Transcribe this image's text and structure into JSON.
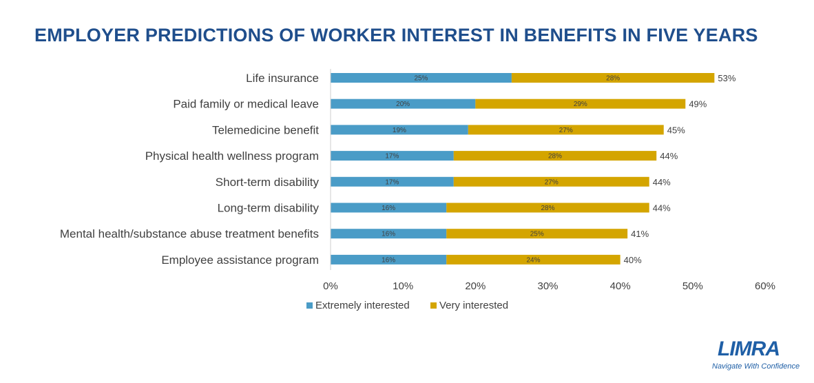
{
  "title": "EMPLOYER PREDICTIONS OF WORKER INTEREST IN BENEFITS IN FIVE YEARS",
  "logo": {
    "name": "LIMRA",
    "tagline": "Navigate With Confidence"
  },
  "colors": {
    "title": "#1f4e8c",
    "extremely": "#4a9cc7",
    "very": "#d4a500",
    "axis": "#cccccc",
    "text": "#404040"
  },
  "chart_data": {
    "type": "bar",
    "orientation": "horizontal",
    "stacked": true,
    "categories": [
      "Life insurance",
      "Paid family or medical leave",
      "Telemedicine benefit",
      "Physical health wellness program",
      "Short-term disability",
      "Long-term disability",
      "Mental health/substance abuse treatment benefits",
      "Employee assistance program"
    ],
    "series": [
      {
        "name": "Extremely interested",
        "values": [
          25,
          20,
          19,
          17,
          17,
          16,
          16,
          16
        ],
        "labels": [
          "25%",
          "20%",
          "19%",
          "17%",
          "17%",
          "16%",
          "16%",
          "16%"
        ]
      },
      {
        "name": "Very interested",
        "values": [
          28,
          29,
          27,
          28,
          27,
          28,
          25,
          24
        ],
        "labels": [
          "28%",
          "29%",
          "27%",
          "28%",
          "27%",
          "28%",
          "25%",
          "24%"
        ]
      }
    ],
    "totals": [
      "53%",
      "49%",
      "45%",
      "44%",
      "44%",
      "44%",
      "41%",
      "40%"
    ],
    "xlim": [
      0,
      60
    ],
    "xticks": [
      "0%",
      "10%",
      "20%",
      "30%",
      "40%",
      "50%",
      "60%"
    ],
    "legend_position": "bottom-left"
  }
}
